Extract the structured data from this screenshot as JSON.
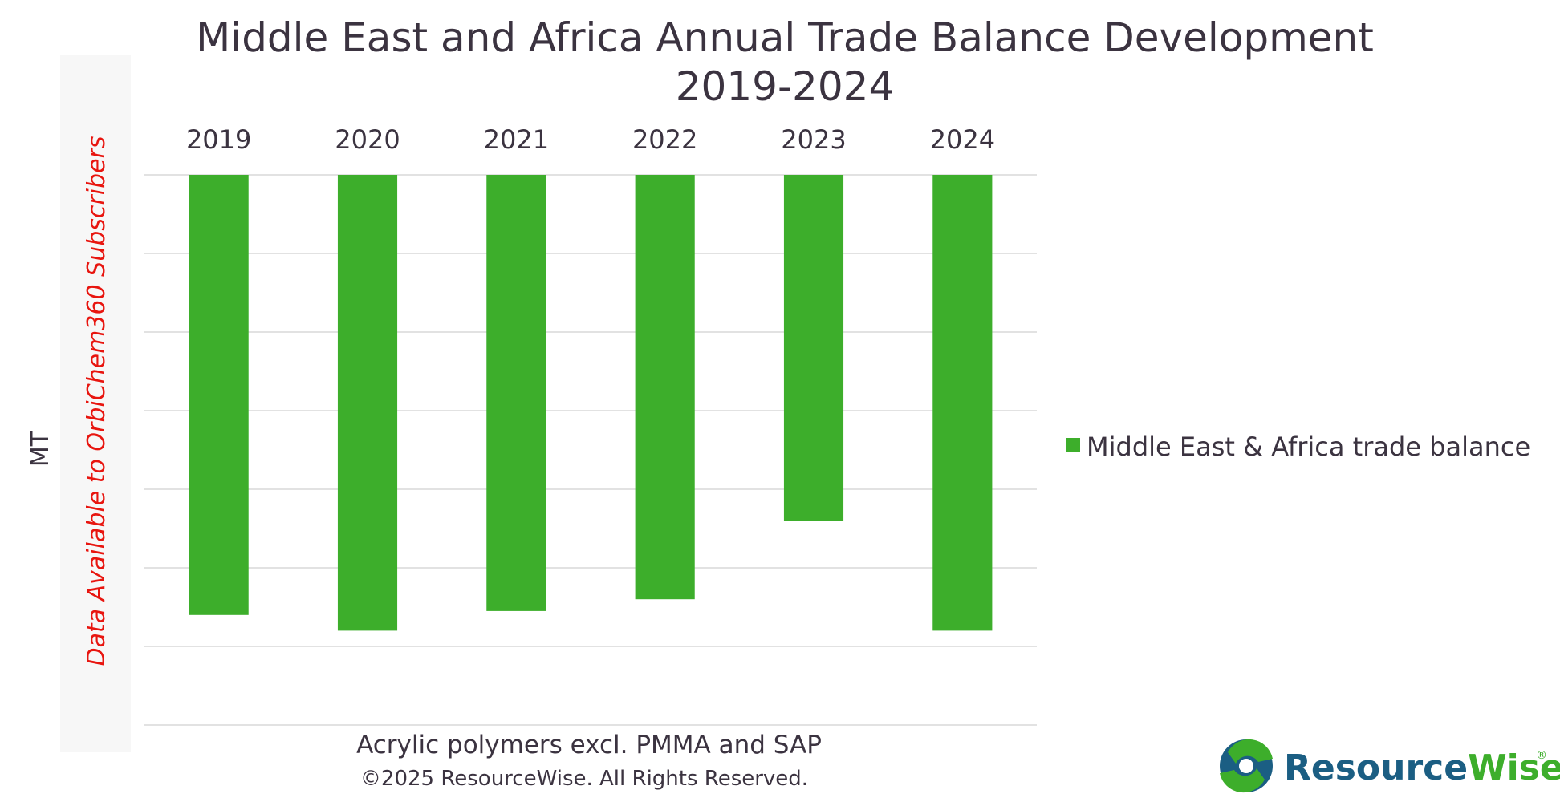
{
  "chart_data": {
    "type": "bar",
    "title_line1": "Middle East and Africa Annual Trade Balance Development",
    "title_line2": "2019-2024",
    "categories": [
      "2019",
      "2020",
      "2021",
      "2022",
      "2023",
      "2024"
    ],
    "series": [
      {
        "name": "Middle East & Africa trade balance",
        "values": [
          -5.6,
          -5.8,
          -5.55,
          -5.4,
          -4.4,
          -5.8
        ]
      }
    ],
    "ylim": [
      -7,
      0
    ],
    "y_gridlines": [
      0,
      -1,
      -2,
      -3,
      -4,
      -5,
      -6,
      -7
    ],
    "y_tick_labels_visible": false,
    "ylabel": "MT",
    "xlabel": "Acrylic polymers excl. PMMA and SAP",
    "legend_position": "right",
    "grid": true,
    "colors": {
      "bar": "#3dae2b",
      "watermark": "#e8150f",
      "text": "#3b3340"
    }
  },
  "watermark": "Data Available to OrbiChem360 Subscribers",
  "copyright": "©2025 ResourceWise. All Rights Reserved.",
  "brand": {
    "name_part1": "Resource",
    "name_part2": "Wise",
    "registered_mark": "®",
    "icon": "resourcewise-logo-icon",
    "color_dark": "#1b5e83",
    "color_green": "#3dae2b"
  }
}
